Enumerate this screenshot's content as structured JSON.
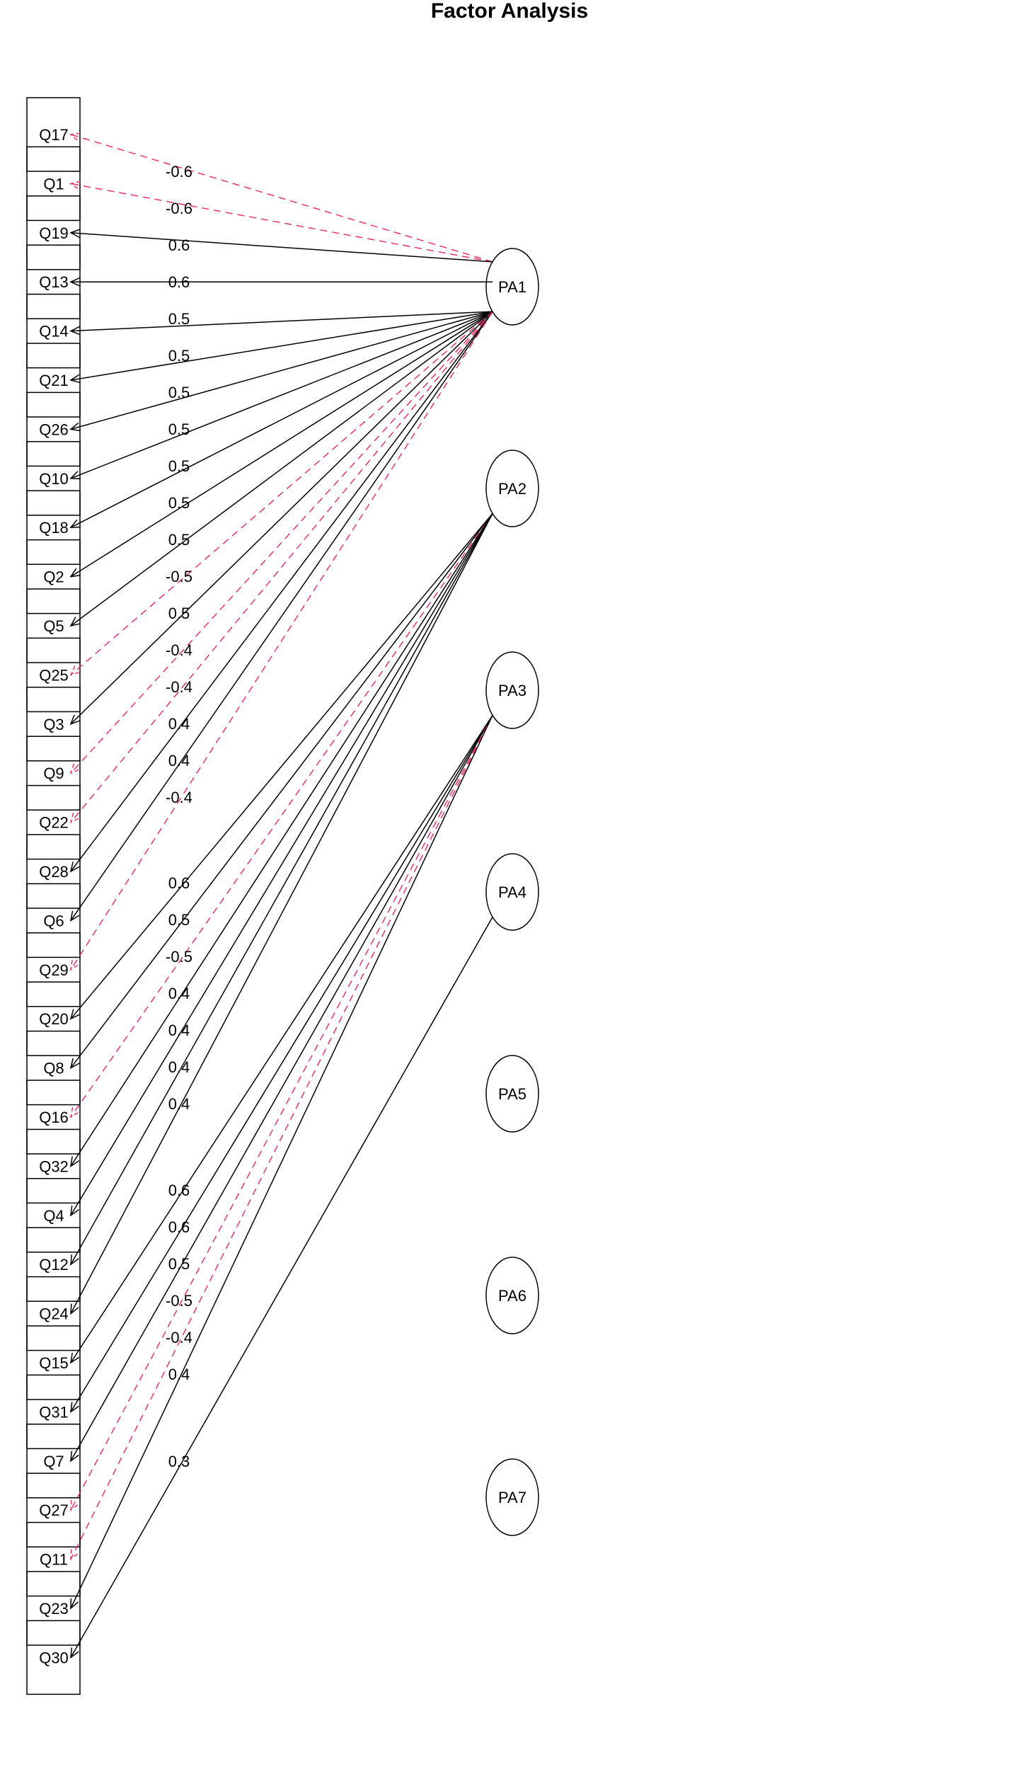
{
  "title": "Factor Analysis",
  "colors": {
    "positive": "#000000",
    "negative": "#e8336b"
  },
  "factors": [
    "PA1",
    "PA2",
    "PA3",
    "PA4",
    "PA5",
    "PA6",
    "PA7"
  ],
  "items": [
    "Q17",
    "Q1",
    "Q19",
    "Q13",
    "Q14",
    "Q21",
    "Q26",
    "Q10",
    "Q18",
    "Q2",
    "Q5",
    "Q25",
    "Q3",
    "Q9",
    "Q22",
    "Q28",
    "Q6",
    "Q29",
    "Q20",
    "Q8",
    "Q16",
    "Q32",
    "Q4",
    "Q12",
    "Q24",
    "Q15",
    "Q31",
    "Q7",
    "Q27",
    "Q11",
    "Q23",
    "Q30"
  ],
  "loadings": [
    {
      "item": "Q17",
      "factor": "PA1",
      "value": -0.6,
      "label": "-0.6"
    },
    {
      "item": "Q1",
      "factor": "PA1",
      "value": -0.6,
      "label": "-0.6"
    },
    {
      "item": "Q19",
      "factor": "PA1",
      "value": 0.6,
      "label": "0.6"
    },
    {
      "item": "Q13",
      "factor": "PA1",
      "value": 0.6,
      "label": "0.6"
    },
    {
      "item": "Q14",
      "factor": "PA1",
      "value": 0.5,
      "label": "0.5"
    },
    {
      "item": "Q21",
      "factor": "PA1",
      "value": 0.5,
      "label": "0.5"
    },
    {
      "item": "Q26",
      "factor": "PA1",
      "value": 0.5,
      "label": "0.5"
    },
    {
      "item": "Q10",
      "factor": "PA1",
      "value": 0.5,
      "label": "0.5"
    },
    {
      "item": "Q18",
      "factor": "PA1",
      "value": 0.5,
      "label": "0.5"
    },
    {
      "item": "Q2",
      "factor": "PA1",
      "value": 0.5,
      "label": "0.5"
    },
    {
      "item": "Q5",
      "factor": "PA1",
      "value": 0.5,
      "label": "0.5"
    },
    {
      "item": "Q25",
      "factor": "PA1",
      "value": -0.5,
      "label": "-0.5"
    },
    {
      "item": "Q3",
      "factor": "PA1",
      "value": 0.5,
      "label": "0.5"
    },
    {
      "item": "Q9",
      "factor": "PA1",
      "value": -0.4,
      "label": "-0.4"
    },
    {
      "item": "Q22",
      "factor": "PA1",
      "value": -0.4,
      "label": "-0.4"
    },
    {
      "item": "Q28",
      "factor": "PA1",
      "value": 0.4,
      "label": "0.4"
    },
    {
      "item": "Q6",
      "factor": "PA1",
      "value": 0.4,
      "label": "0.4"
    },
    {
      "item": "Q29",
      "factor": "PA1",
      "value": -0.4,
      "label": "-0.4"
    },
    {
      "item": "Q20",
      "factor": "PA2",
      "value": 0.6,
      "label": "0.6"
    },
    {
      "item": "Q8",
      "factor": "PA2",
      "value": 0.5,
      "label": "0.5"
    },
    {
      "item": "Q16",
      "factor": "PA2",
      "value": -0.5,
      "label": "-0.5"
    },
    {
      "item": "Q32",
      "factor": "PA2",
      "value": 0.4,
      "label": "0.4"
    },
    {
      "item": "Q4",
      "factor": "PA2",
      "value": 0.4,
      "label": "0.4"
    },
    {
      "item": "Q12",
      "factor": "PA2",
      "value": 0.4,
      "label": "0.4"
    },
    {
      "item": "Q24",
      "factor": "PA2",
      "value": 0.4,
      "label": "0.4"
    },
    {
      "item": "Q15",
      "factor": "PA3",
      "value": 0.6,
      "label": "0.6"
    },
    {
      "item": "Q31",
      "factor": "PA3",
      "value": 0.6,
      "label": "0.6"
    },
    {
      "item": "Q7",
      "factor": "PA3",
      "value": 0.5,
      "label": "0.5"
    },
    {
      "item": "Q27",
      "factor": "PA3",
      "value": -0.5,
      "label": "-0.5"
    },
    {
      "item": "Q11",
      "factor": "PA3",
      "value": -0.4,
      "label": "-0.4"
    },
    {
      "item": "Q23",
      "factor": "PA3",
      "value": 0.4,
      "label": "0.4"
    },
    {
      "item": "Q30",
      "factor": "PA4",
      "value": 0.3,
      "label": "0.3"
    }
  ]
}
